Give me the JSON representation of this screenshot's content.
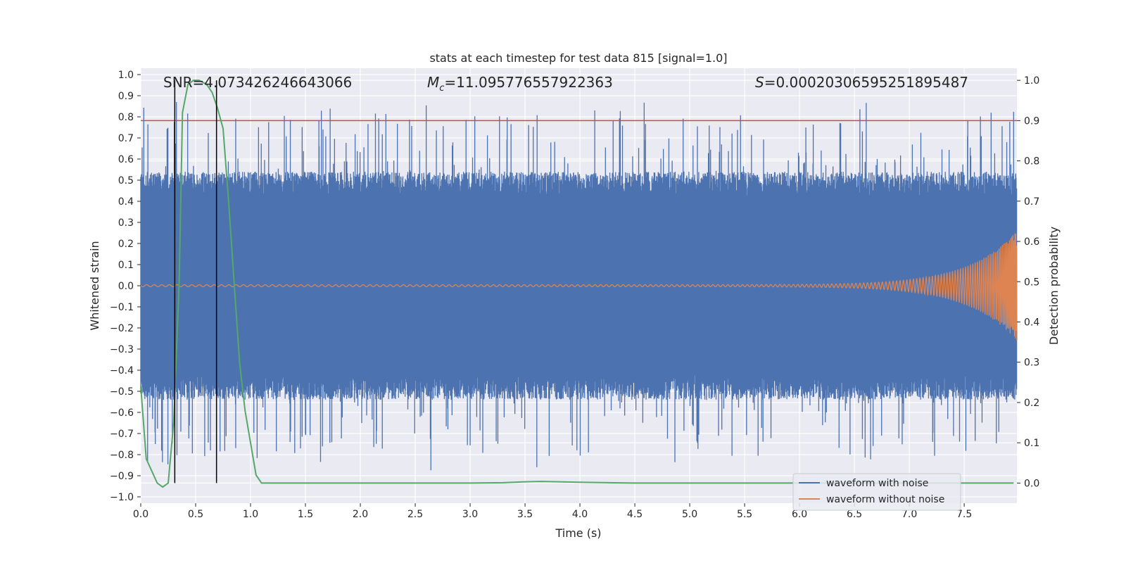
{
  "chart_data": {
    "type": "line",
    "title": "stats at each timestep for test data 815 [signal=1.0]",
    "xlabel": "Time (s)",
    "ylabel": "Whitened strain",
    "ylabel_right": "Detection probability",
    "xlim": [
      0.0,
      7.98
    ],
    "ylim": [
      -1.03,
      1.03
    ],
    "ylim_right": [
      -0.05,
      1.03
    ],
    "xticks": [
      "0.0",
      "0.5",
      "1.0",
      "1.5",
      "2.0",
      "2.5",
      "3.0",
      "3.5",
      "4.0",
      "4.5",
      "5.0",
      "5.5",
      "6.0",
      "6.5",
      "7.0",
      "7.5"
    ],
    "yticks": [
      "1.0",
      "0.9",
      "0.8",
      "0.7",
      "0.6",
      "0.5",
      "0.4",
      "0.3",
      "0.2",
      "0.1",
      "0.0",
      "−0.1",
      "−0.2",
      "−0.3",
      "−0.4",
      "−0.5",
      "−0.6",
      "−0.7",
      "−0.8",
      "−0.9",
      "−1.0"
    ],
    "yticks_right": [
      "1.0",
      "0.9",
      "0.8",
      "0.7",
      "0.6",
      "0.5",
      "0.4",
      "0.3",
      "0.2",
      "0.1",
      "0.0"
    ],
    "annotations": {
      "snr": "SNR=4.073426246643066",
      "mc_symbol": "M",
      "mc_sub": "c",
      "mc_value": "=11.095776557922363",
      "s_symbol": "S",
      "s_value": "=0.0002030659525189548​7"
    },
    "series": [
      {
        "name": "waveform with noise",
        "color": "#4c72b0",
        "kind": "noise",
        "envelope_hi": 0.42,
        "envelope_lo": -0.42
      },
      {
        "name": "waveform without noise",
        "color": "#dd8452",
        "kind": "chirp",
        "amplitude_start": 0.005,
        "amplitude_end": 0.26,
        "merger_time": 7.98
      },
      {
        "name": "detection probability",
        "color": "#55a868",
        "axis": "right",
        "x": [
          0.0,
          0.05,
          0.1,
          0.15,
          0.2,
          0.25,
          0.3,
          0.35,
          0.38,
          0.43,
          0.48,
          0.53,
          0.6,
          0.65,
          0.7,
          0.75,
          0.8,
          0.85,
          0.9,
          0.95,
          1.0,
          1.05,
          1.1,
          1.2,
          1.5,
          2.0,
          2.5,
          3.0,
          3.3,
          3.5,
          3.65,
          4.0,
          4.5,
          5.0,
          6.0,
          7.0,
          7.95
        ],
        "y": [
          0.24,
          0.06,
          0.03,
          0.0,
          -0.01,
          0.0,
          0.15,
          0.5,
          0.92,
          0.99,
          1.0,
          1.0,
          0.99,
          0.97,
          0.93,
          0.88,
          0.7,
          0.5,
          0.3,
          0.18,
          0.1,
          0.02,
          0.0,
          0.0,
          0.0,
          0.0,
          0.0,
          0.0,
          0.001,
          0.003,
          0.004,
          0.002,
          0.0,
          0.0,
          0.0,
          0.0,
          0.0
        ]
      }
    ],
    "threshold": {
      "value": 0.9,
      "axis": "right",
      "color": "#c44e52"
    },
    "vlines": [
      0.31,
      0.69
    ],
    "legend": {
      "position": "bottom-right",
      "entries": [
        "waveform with noise",
        "waveform without noise"
      ]
    },
    "grid": true
  }
}
